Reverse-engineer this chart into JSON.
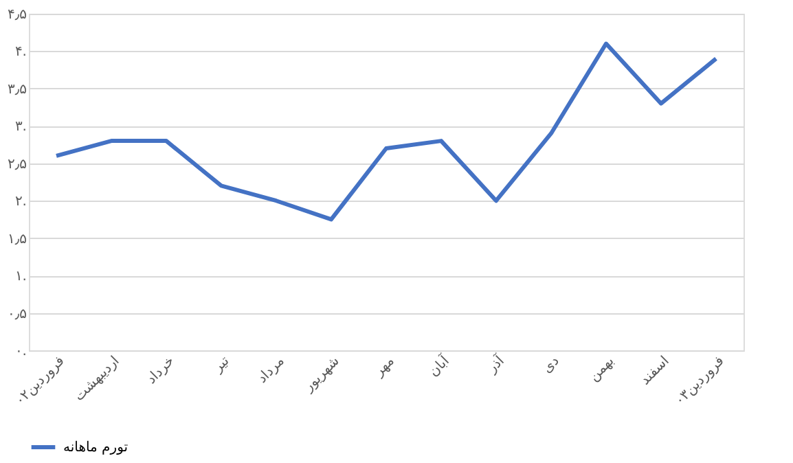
{
  "chart_data": {
    "type": "line",
    "categories": [
      "فروردین۰۲",
      "اردیبهشت",
      "خرداد",
      "تیر",
      "مرداد",
      "شهریور",
      "مهر",
      "آبان",
      "آذر",
      "دی",
      "بهمن",
      "اسفند",
      "فروردین۰۳"
    ],
    "series": [
      {
        "name": "تورم ماهانه",
        "color": "#4472c4",
        "values": [
          2.6,
          2.8,
          2.8,
          2.2,
          2.0,
          1.75,
          2.7,
          2.8,
          2.0,
          2.9,
          4.1,
          3.3,
          3.9
        ]
      }
    ],
    "ylim": [
      0,
      4.5
    ],
    "yticks": [
      {
        "value": 0,
        "label": "۰."
      },
      {
        "value": 0.5,
        "label": "۰٫۵"
      },
      {
        "value": 1,
        "label": "۱."
      },
      {
        "value": 1.5,
        "label": "۱٫۵"
      },
      {
        "value": 2,
        "label": "۲."
      },
      {
        "value": 2.5,
        "label": "۲٫۵"
      },
      {
        "value": 3,
        "label": "۳."
      },
      {
        "value": 3.5,
        "label": "۳٫۵"
      },
      {
        "value": 4,
        "label": "۴."
      },
      {
        "value": 4.5,
        "label": "۴٫۵"
      }
    ],
    "grid": "y",
    "legend": "bottom",
    "marker": "none",
    "line_style": "solid"
  }
}
